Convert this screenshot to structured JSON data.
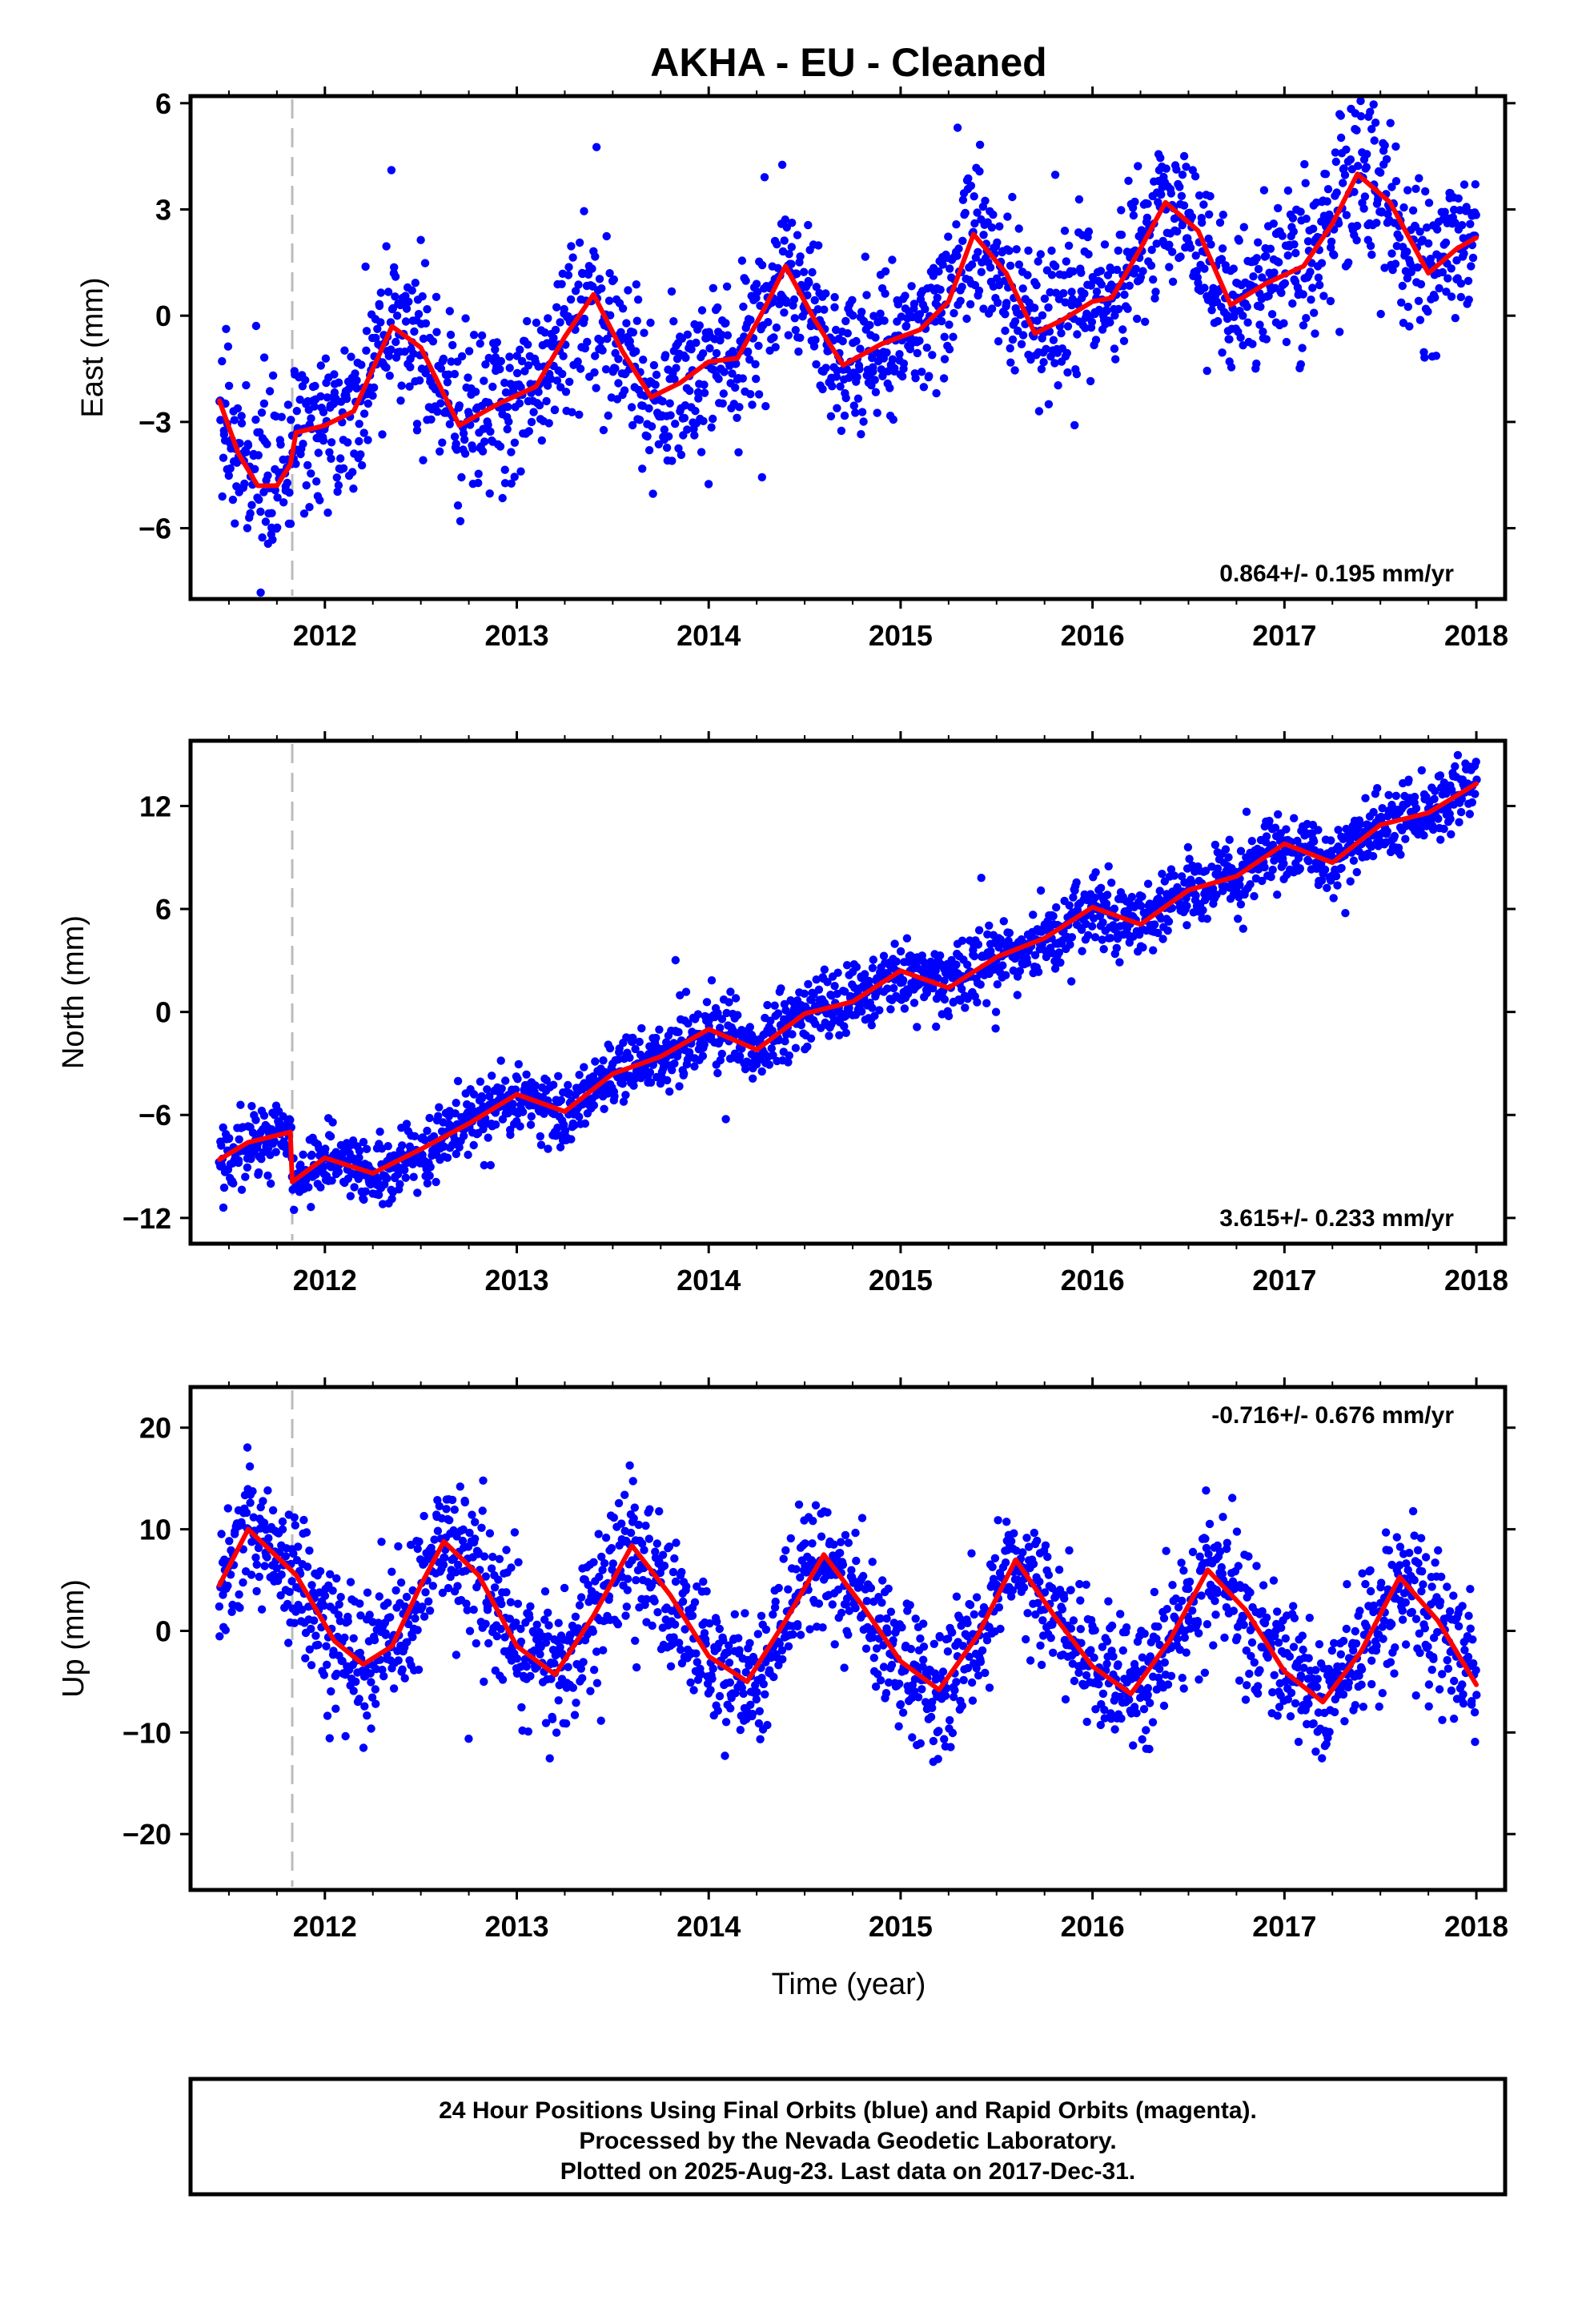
{
  "title": "AKHA  - EU - Cleaned",
  "x_axis_label": "Time (year)",
  "footer_lines": [
    "24 Hour Positions Using Final Orbits (blue) and Rapid Orbits (magenta).",
    "Processed by the Nevada Geodetic Laboratory.",
    "Plotted on 2025-Aug-23. Last data on 2017-Dec-31."
  ],
  "colors": {
    "data_points": "#0000ff",
    "model_fit": "#ff0000",
    "event_line": "#bbbbbb"
  },
  "chart_data": [
    {
      "type": "scatter",
      "component": "East",
      "ylabel": "East (mm)",
      "rate_text": "0.864+/- 0.195 mm/yr",
      "rate_position": "bottom-right",
      "xlim": [
        2011.3,
        2018.15
      ],
      "ylim": [
        -8.0,
        6.2
      ],
      "x_ticks": [
        2012,
        2013,
        2014,
        2015,
        2016,
        2017,
        2018
      ],
      "y_ticks": [
        -6,
        -3,
        0,
        3,
        6
      ],
      "y_tick_labels": [
        "−6",
        "−3",
        "0",
        "3",
        "6"
      ],
      "event_line_x": 2011.83,
      "series": [
        {
          "style": "points",
          "x_start": 2011.45,
          "x_end": 2018.0,
          "count": 2000,
          "trend_mm_per_yr": 0.864,
          "intercept_mm": -2.4,
          "seasonal_amplitude_mm": 1.6,
          "scatter_sd_mm": 1.1
        },
        {
          "style": "line",
          "x": [
            2011.45,
            2011.55,
            2011.65,
            2011.75,
            2011.82,
            2011.85,
            2012.0,
            2012.15,
            2012.35,
            2012.5,
            2012.7,
            2012.9,
            2013.1,
            2013.25,
            2013.4,
            2013.55,
            2013.7,
            2013.85,
            2014.0,
            2014.15,
            2014.3,
            2014.4,
            2014.55,
            2014.7,
            2014.9,
            2015.1,
            2015.25,
            2015.38,
            2015.55,
            2015.7,
            2015.85,
            2016.0,
            2016.1,
            2016.25,
            2016.38,
            2016.55,
            2016.72,
            2016.9,
            2017.1,
            2017.25,
            2017.38,
            2017.55,
            2017.75,
            2017.9,
            2018.0
          ],
          "y": [
            -2.4,
            -3.9,
            -4.8,
            -4.8,
            -4.2,
            -3.3,
            -3.1,
            -2.7,
            -0.3,
            -0.9,
            -3.1,
            -2.5,
            -2.0,
            -0.6,
            0.6,
            -1.0,
            -2.3,
            -1.9,
            -1.3,
            -1.2,
            0.3,
            1.4,
            -0.1,
            -1.4,
            -0.8,
            -0.4,
            0.4,
            2.3,
            1.2,
            -0.5,
            -0.1,
            0.4,
            0.5,
            1.9,
            3.2,
            2.4,
            0.3,
            0.9,
            1.4,
            2.6,
            4.0,
            3.2,
            1.2,
            1.9,
            2.2
          ]
        }
      ]
    },
    {
      "type": "scatter",
      "component": "North",
      "ylabel": "North (mm)",
      "rate_text": "3.615+/- 0.233 mm/yr",
      "rate_position": "bottom-right",
      "xlim": [
        2011.3,
        2018.15
      ],
      "ylim": [
        -13.5,
        15.8
      ],
      "x_ticks": [
        2012,
        2013,
        2014,
        2015,
        2016,
        2017,
        2018
      ],
      "y_ticks": [
        -12,
        -6,
        0,
        6,
        12
      ],
      "y_tick_labels": [
        "−12",
        "−6",
        "0",
        "6",
        "12"
      ],
      "event_line_x": 2011.83,
      "series": [
        {
          "style": "points",
          "x_start": 2011.45,
          "x_end": 2018.0,
          "count": 2000,
          "trend_mm_per_yr": 3.615,
          "intercept_mm": -8.6,
          "seasonal_amplitude_mm": 0.7,
          "scatter_sd_mm": 1.0
        },
        {
          "style": "line",
          "x": [
            2011.45,
            2011.6,
            2011.82,
            2011.83,
            2012.0,
            2012.25,
            2012.5,
            2012.75,
            2013.0,
            2013.25,
            2013.5,
            2013.75,
            2014.0,
            2014.25,
            2014.5,
            2014.75,
            2015.0,
            2015.25,
            2015.5,
            2015.75,
            2016.0,
            2016.25,
            2016.5,
            2016.75,
            2017.0,
            2017.25,
            2017.5,
            2017.75,
            2018.0
          ],
          "y": [
            -8.6,
            -7.6,
            -7.0,
            -9.9,
            -8.5,
            -9.4,
            -8.0,
            -6.5,
            -4.8,
            -5.8,
            -3.6,
            -2.6,
            -1.0,
            -2.2,
            -0.1,
            0.6,
            2.4,
            1.4,
            3.2,
            4.3,
            6.1,
            5.1,
            7.1,
            7.9,
            9.8,
            8.7,
            10.9,
            11.6,
            13.3
          ]
        }
      ]
    },
    {
      "type": "scatter",
      "component": "Up",
      "ylabel": "Up (mm)",
      "rate_text": "-0.716+/- 0.676 mm/yr",
      "rate_position": "top-right",
      "xlim": [
        2011.3,
        2018.15
      ],
      "ylim": [
        -25.5,
        24.0
      ],
      "x_ticks": [
        2012,
        2013,
        2014,
        2015,
        2016,
        2017,
        2018
      ],
      "y_ticks": [
        -20,
        -10,
        0,
        10,
        20
      ],
      "y_tick_labels": [
        "−20",
        "−10",
        "0",
        "10",
        "20"
      ],
      "event_line_x": 2011.83,
      "series": [
        {
          "style": "points",
          "x_start": 2011.45,
          "x_end": 2018.0,
          "count": 2000,
          "trend_mm_per_yr": -0.716,
          "intercept_mm": 3.0,
          "seasonal_amplitude_mm": 7.0,
          "scatter_sd_mm": 3.4
        },
        {
          "style": "line",
          "x": [
            2011.45,
            2011.6,
            2011.85,
            2012.05,
            2012.2,
            2012.35,
            2012.5,
            2012.62,
            2012.8,
            2013.0,
            2013.2,
            2013.4,
            2013.6,
            2013.8,
            2014.0,
            2014.2,
            2014.4,
            2014.6,
            2014.8,
            2015.0,
            2015.2,
            2015.4,
            2015.6,
            2015.8,
            2016.0,
            2016.2,
            2016.4,
            2016.6,
            2016.8,
            2017.0,
            2017.2,
            2017.4,
            2017.6,
            2017.8,
            2018.0
          ],
          "y": [
            4.5,
            10.0,
            5.5,
            -1.0,
            -3.3,
            -1.5,
            4.5,
            8.8,
            5.5,
            -1.5,
            -4.3,
            1.5,
            8.4,
            3.5,
            -2.5,
            -5.0,
            1.0,
            7.5,
            2.5,
            -3.0,
            -5.8,
            -0.5,
            7.0,
            1.5,
            -3.5,
            -6.2,
            -1.0,
            6.0,
            2.0,
            -4.0,
            -7.0,
            -2.0,
            5.3,
            1.0,
            -5.3
          ]
        }
      ]
    }
  ]
}
